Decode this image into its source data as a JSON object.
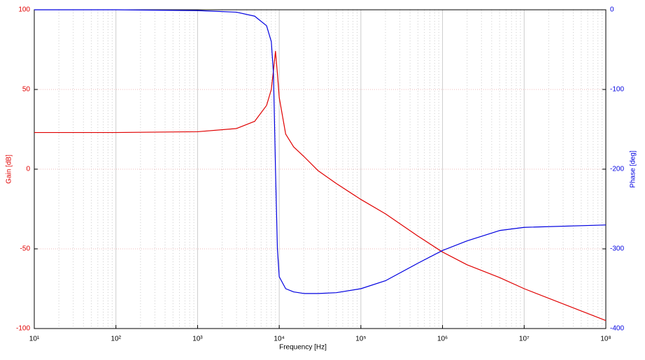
{
  "chart_data": {
    "type": "line",
    "x_label": "Frequency [Hz]",
    "y_label": "Gain [dB]",
    "y2_label": "Phase [deg]",
    "x_log": true,
    "grid": true,
    "x": [
      10,
      100,
      1000,
      3000,
      5000,
      7000,
      8000,
      8500,
      9000,
      9500,
      10000,
      12000,
      15000,
      20000,
      30000,
      50000,
      100000,
      200000,
      500000,
      1000000,
      2000000,
      5000000,
      10000000,
      100000000
    ],
    "series": [
      {
        "name": "Gain [dB]",
        "color": "#e00000",
        "values": [
          23,
          23,
          23.5,
          25.5,
          30,
          40,
          50,
          62,
          74,
          60,
          45,
          22,
          14,
          8,
          -1,
          -9,
          -19,
          -28,
          -42,
          -52,
          -60,
          -68,
          -75,
          -95
        ]
      },
      {
        "name": "Phase [deg]",
        "color": "#0000e0",
        "axis": "y2",
        "values": [
          0,
          0,
          -1,
          -3,
          -8,
          -20,
          -40,
          -80,
          -200,
          -300,
          -335,
          -350,
          -354,
          -356,
          -356,
          -355,
          -350,
          -340,
          -318,
          -302,
          -290,
          -277,
          -273,
          -270
        ]
      }
    ],
    "xlim": [
      10,
      100000000
    ],
    "xticks": [
      {
        "value": 10,
        "label": "10¹"
      },
      {
        "value": 100,
        "label": "10²"
      },
      {
        "value": 1000,
        "label": "10³"
      },
      {
        "value": 10000,
        "label": "10⁴"
      },
      {
        "value": 100000,
        "label": "10⁵"
      },
      {
        "value": 1000000,
        "label": "10⁶"
      },
      {
        "value": 10000000,
        "label": "10⁷"
      },
      {
        "value": 100000000,
        "label": "10⁸"
      }
    ],
    "ylim": [
      -100,
      100
    ],
    "yticks": [
      -100,
      -50,
      0,
      50,
      100
    ],
    "y2lim": [
      -400,
      0
    ],
    "y2ticks": [
      -400,
      -300,
      -200,
      -100,
      0
    ]
  }
}
